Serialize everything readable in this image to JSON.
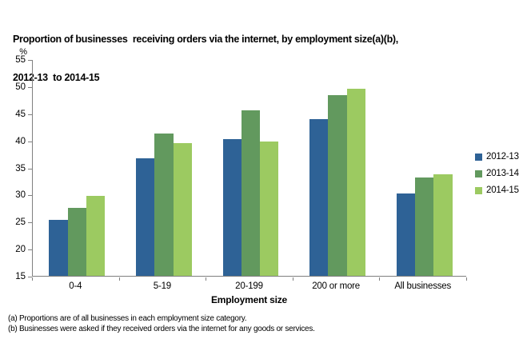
{
  "title": {
    "line1": "Proportion of businesses  receiving orders via the internet, by employment size(a)(b),",
    "line2": "2012-13  to 2014-15"
  },
  "axis_colors": {
    "line": "#808080",
    "text": "#000000"
  },
  "chart_data": {
    "type": "bar",
    "title": "Proportion of businesses receiving orders via the internet, by employment size(a)(b), 2012-13 to 2014-15",
    "unit_label": "%",
    "xlabel": "Employment size",
    "categories": [
      "0-4",
      "5-19",
      "20-199",
      "200 or more",
      "All businesses"
    ],
    "series": [
      {
        "name": "2012-13",
        "color": "#2e6296",
        "values": [
          25.4,
          36.7,
          40.3,
          44.0,
          30.2
        ]
      },
      {
        "name": "2013-14",
        "color": "#62995e",
        "values": [
          27.5,
          41.3,
          45.6,
          48.3,
          33.1
        ]
      },
      {
        "name": "2014-15",
        "color": "#9cca61",
        "values": [
          29.8,
          39.5,
          39.8,
          49.6,
          33.8
        ]
      }
    ],
    "ylim": [
      15,
      55
    ],
    "yticks": [
      15,
      20,
      25,
      30,
      35,
      40,
      45,
      50,
      55
    ],
    "grid": false,
    "legend_position": "right"
  },
  "footnotes": [
    "(a) Proportions are of all businesses in each employment size category.",
    "(b) Businesses were asked if they received orders via the internet for any goods or services."
  ]
}
